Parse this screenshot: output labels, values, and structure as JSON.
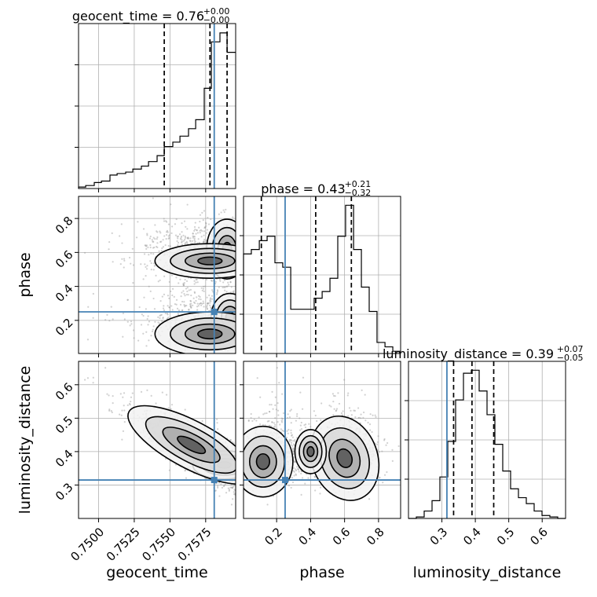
{
  "chart_data": {
    "type": "corner",
    "parameters": [
      "geocent_time",
      "phase",
      "luminosity_distance"
    ],
    "truth_color": "#4682b4",
    "truths": {
      "geocent_time": 0.7581,
      "phase": 0.25,
      "luminosity_distance": 0.315
    },
    "titles": [
      {
        "name": "geocent_time",
        "text": "geocent_time = 0.76",
        "plus": "+0.00",
        "minus": "−0.00"
      },
      {
        "name": "phase",
        "text": "phase = 0.43",
        "plus": "+0.21",
        "minus": "−0.32"
      },
      {
        "name": "luminosity_distance",
        "text": "luminosity_distance = 0.39",
        "plus": "+0.07",
        "minus": "−0.05"
      }
    ],
    "axis_labels": {
      "x": [
        "geocent_time",
        "phase",
        "luminosity_distance"
      ],
      "y": [
        "phase",
        "luminosity_distance"
      ]
    },
    "ticks": {
      "geocent_time": [
        "0.7500",
        "0.7525",
        "0.7550",
        "0.7575"
      ],
      "phase": [
        "0.2",
        "0.4",
        "0.6",
        "0.8"
      ],
      "luminosity_distance": [
        "0.3",
        "0.4",
        "0.5",
        "0.6"
      ]
    },
    "ranges": {
      "geocent_time": [
        0.7486,
        0.7596
      ],
      "phase": [
        0.005,
        0.93
      ],
      "luminosity_distance": [
        0.2,
        0.67
      ]
    },
    "quantiles": {
      "geocent_time": [
        0.7546,
        0.7578,
        0.759
      ],
      "phase": [
        0.11,
        0.43,
        0.64
      ],
      "luminosity_distance": [
        0.335,
        0.39,
        0.455
      ]
    },
    "histograms": {
      "geocent_time": {
        "edges": [
          0.7486,
          0.7491,
          0.7497,
          0.7502,
          0.7508,
          0.7513,
          0.7519,
          0.7524,
          0.753,
          0.7535,
          0.7541,
          0.7546,
          0.7552,
          0.7557,
          0.7563,
          0.7568,
          0.7574,
          0.7579,
          0.7585,
          0.759,
          0.7596
        ],
        "counts": [
          1,
          2,
          4,
          5,
          9,
          10,
          11,
          13,
          15,
          18,
          22,
          28,
          31,
          35,
          40,
          46,
          67,
          98,
          104,
          91
        ]
      },
      "phase": {
        "edges": [
          0.005,
          0.051,
          0.098,
          0.144,
          0.19,
          0.236,
          0.283,
          0.329,
          0.375,
          0.421,
          0.468,
          0.514,
          0.56,
          0.606,
          0.653,
          0.699,
          0.745,
          0.791,
          0.838,
          0.884,
          0.93
        ],
        "counts": [
          45,
          47,
          51,
          53,
          41,
          39,
          20,
          20,
          20,
          25,
          28,
          34,
          53,
          67,
          47,
          30,
          19,
          5,
          3,
          1
        ]
      },
      "luminosity_distance": {
        "edges": [
          0.2,
          0.2235,
          0.247,
          0.2705,
          0.294,
          0.3175,
          0.341,
          0.3645,
          0.388,
          0.4115,
          0.435,
          0.4585,
          0.482,
          0.5055,
          0.529,
          0.5525,
          0.576,
          0.5995,
          0.623,
          0.6465,
          0.67
        ],
        "counts": [
          0,
          1,
          5,
          12,
          28,
          52,
          80,
          98,
          100,
          86,
          70,
          50,
          32,
          20,
          14,
          10,
          5,
          2,
          1,
          0
        ]
      }
    },
    "grid": true
  }
}
